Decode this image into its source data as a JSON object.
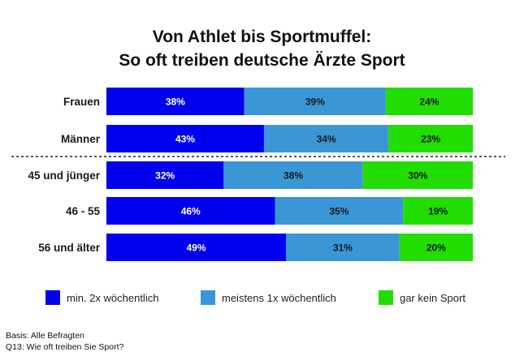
{
  "chart_data": {
    "type": "bar",
    "orientation": "horizontal",
    "stacked": true,
    "normalized_percent": true,
    "title": [
      "Von Athlet bis Sportmuffel:",
      "So oft treiben deutsche Ärzte Sport"
    ],
    "categories": [
      "Frauen",
      "Männer",
      "45 und jünger",
      "46 - 55",
      "56 und älter"
    ],
    "group_separator_after_index": 1,
    "series": [
      {
        "name": "min. 2x wöchentlich",
        "color": "#0000ee",
        "label_color": "#ffffff",
        "values": [
          38,
          43,
          32,
          46,
          49
        ]
      },
      {
        "name": "meistens 1x wöchentlich",
        "color": "#3a96d4",
        "label_color": "#1a1a1a",
        "values": [
          39,
          34,
          38,
          35,
          31
        ]
      },
      {
        "name": "gar kein Sport",
        "color": "#22dd00",
        "label_color": "#1a1a1a",
        "values": [
          24,
          23,
          30,
          19,
          20
        ]
      }
    ],
    "value_suffix": "%",
    "legend_position": "bottom",
    "grid": false
  },
  "notes": [
    "Basis: Alle Befragten",
    "Q13: Wie oft treiben Sie Sport?"
  ]
}
